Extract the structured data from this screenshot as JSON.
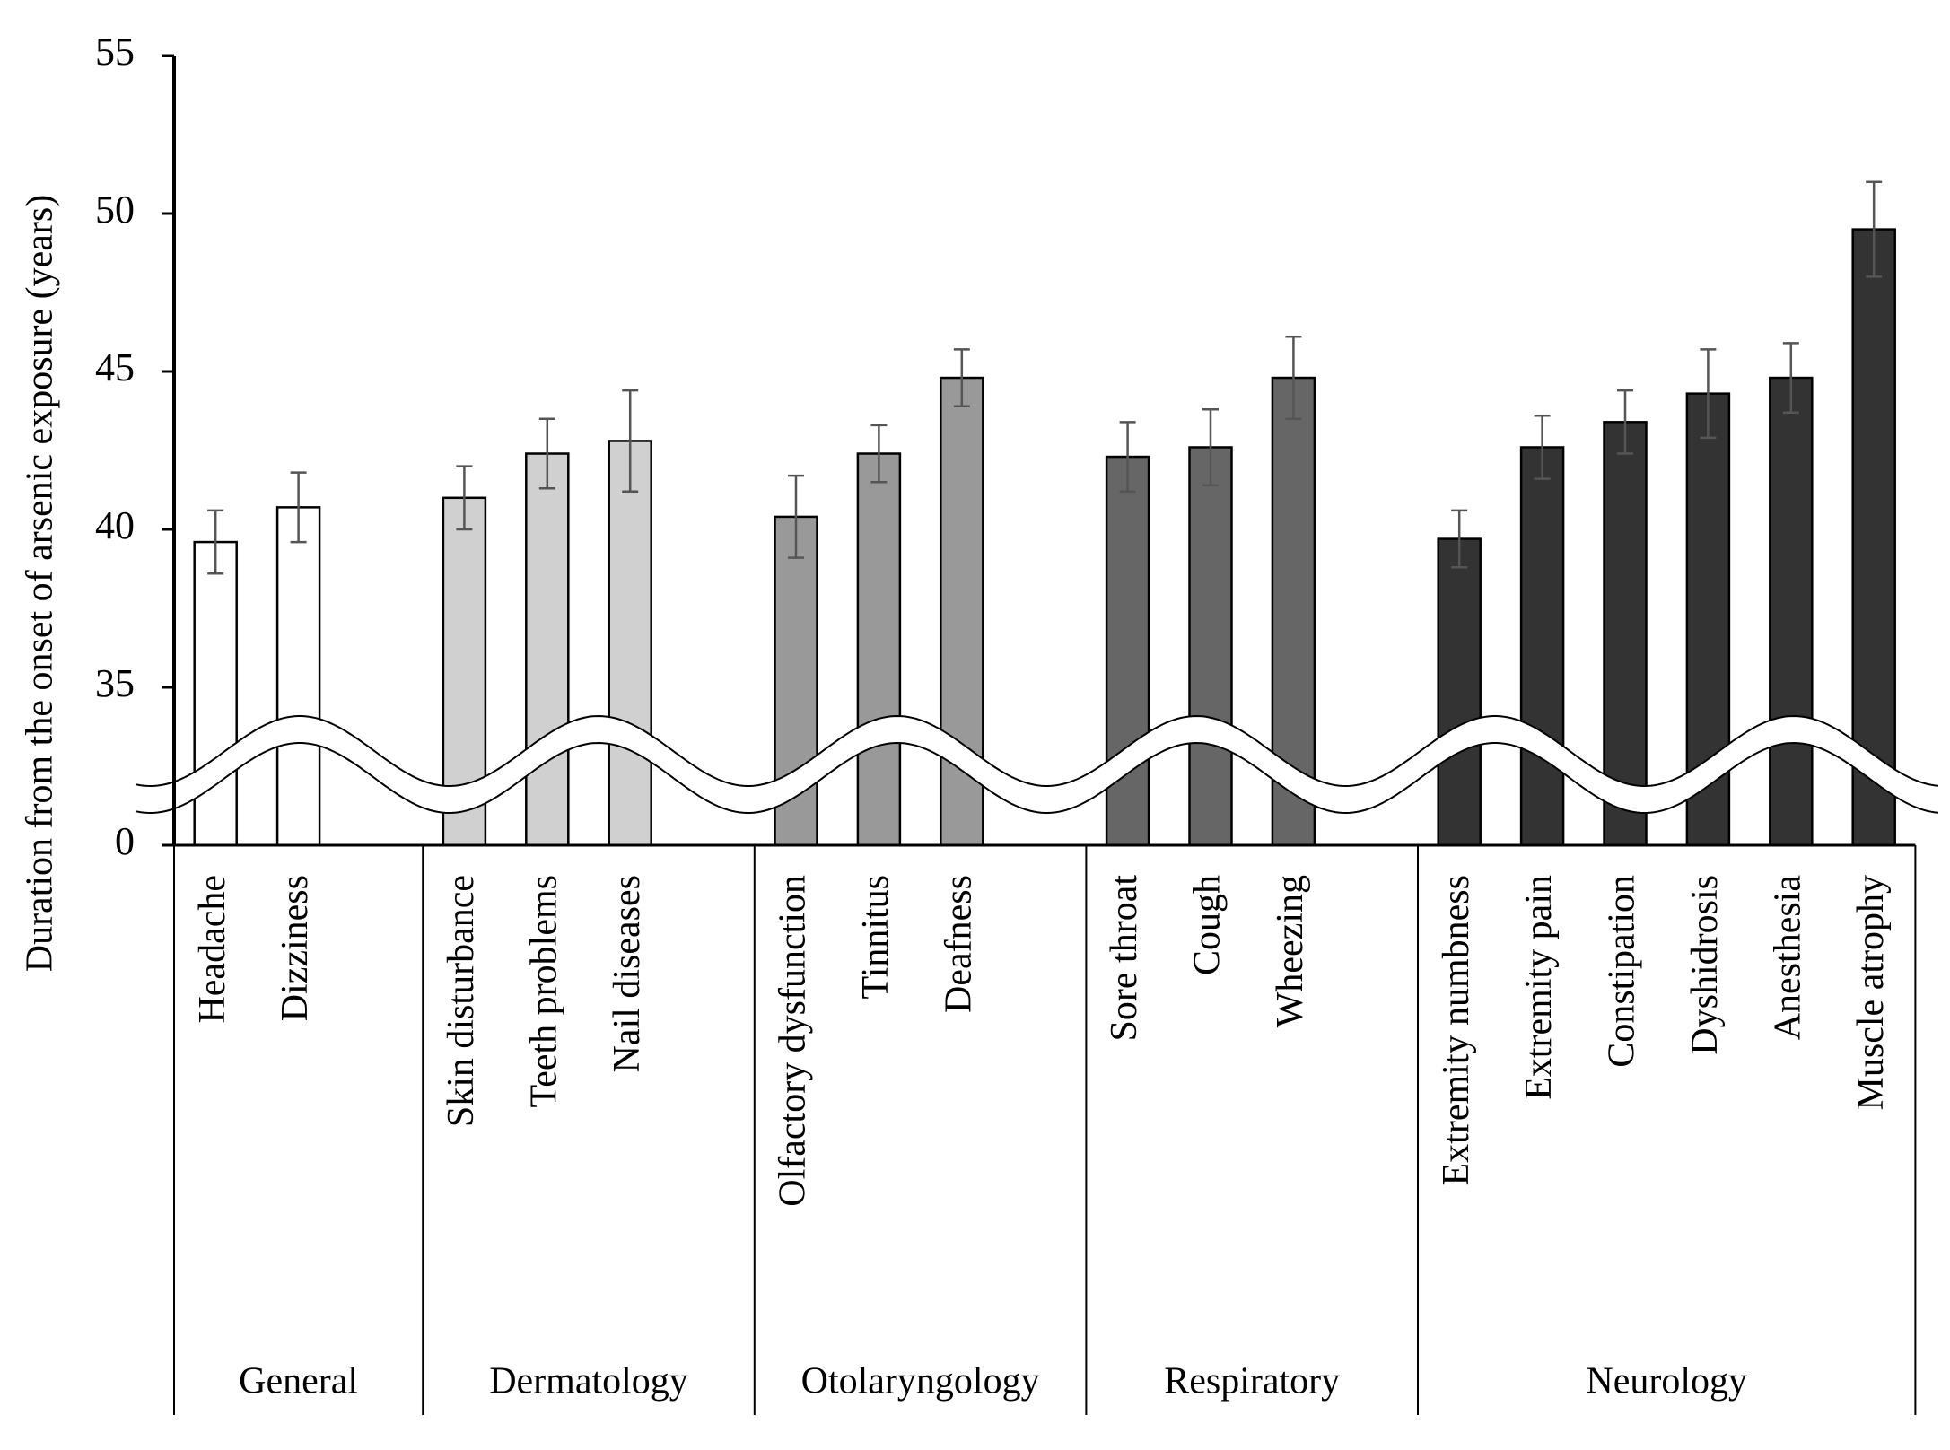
{
  "chart_data": {
    "type": "bar",
    "y_label": "Duration from the onset of arsenic exposure (years)",
    "ylim": [
      0,
      55
    ],
    "yticks": [
      0,
      35,
      40,
      45,
      50,
      55
    ],
    "axis_break": true,
    "groups": [
      {
        "name": "General",
        "color": "#ffffff",
        "categories": [
          "Headache",
          "Dizziness"
        ],
        "values": [
          39.6,
          40.7
        ],
        "errors": [
          1.0,
          1.1
        ]
      },
      {
        "name": "Dermatology",
        "color": "#d0d0d0",
        "categories": [
          "Skin disturbance",
          "Teeth problems",
          "Nail diseases"
        ],
        "values": [
          41.0,
          42.4,
          42.8
        ],
        "errors": [
          1.0,
          1.1,
          1.6
        ]
      },
      {
        "name": "Otolaryngology",
        "color": "#999999",
        "categories": [
          "Olfactory dysfunction",
          "Tinnitus",
          "Deafness"
        ],
        "values": [
          40.4,
          42.4,
          44.8
        ],
        "errors": [
          1.3,
          0.9,
          0.9
        ]
      },
      {
        "name": "Respiratory",
        "color": "#666666",
        "categories": [
          "Sore throat",
          "Cough",
          "Wheezing"
        ],
        "values": [
          42.3,
          42.6,
          44.8
        ],
        "errors": [
          1.1,
          1.2,
          1.3
        ]
      },
      {
        "name": "Neurology",
        "color": "#333333",
        "categories": [
          "Extremity numbness",
          "Extremity pain",
          "Constipation",
          "Dyshidrosis",
          "Anesthesia",
          "Muscle atrophy"
        ],
        "values": [
          39.7,
          42.6,
          43.4,
          44.3,
          44.8,
          49.5
        ],
        "errors": [
          0.9,
          1.0,
          1.0,
          1.4,
          1.1,
          1.5
        ]
      }
    ]
  }
}
